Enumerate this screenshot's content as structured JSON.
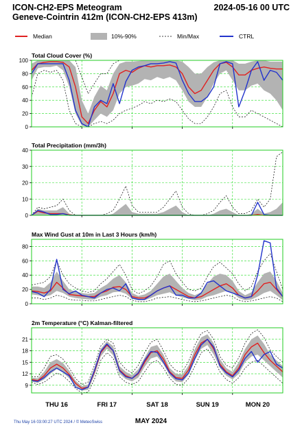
{
  "header": {
    "title_line1": "ICON-CH2-EPS Meteogram",
    "title_line2": "Geneve-Cointrin 412m (ICON-CH2-EPS 413m)",
    "run_time": "2024-05-16 00 UTC"
  },
  "legend": {
    "median": "Median",
    "band": "10%-90%",
    "minmax": "Min/Max",
    "ctrl": "CTRL"
  },
  "colors": {
    "median": "#e02020",
    "band": "#b3b3b3",
    "ctrl": "#2233cc",
    "grid": "#22dd22",
    "frame": "#22cc22"
  },
  "footer": {
    "timestamp": "Thu May 16 03:00:27 UTC 2024 / © MeteoSwiss",
    "month": "MAY  2024"
  },
  "x_axis": {
    "days": [
      {
        "label": "THU 16",
        "t": 12
      },
      {
        "label": "FRI 17",
        "t": 36
      },
      {
        "label": "SAT 18",
        "t": 60
      },
      {
        "label": "SUN 19",
        "t": 84
      },
      {
        "label": "MON 20",
        "t": 108
      }
    ],
    "grid_t": [
      24,
      48,
      72,
      96
    ],
    "t_range": [
      0,
      120
    ]
  },
  "chart_data": [
    {
      "type": "line",
      "title": "Total Cloud Cover (%)",
      "unit": "%",
      "ylim": [
        0,
        100
      ],
      "yticks": [
        0,
        20,
        40,
        60,
        80,
        100
      ],
      "t": [
        0,
        3,
        6,
        9,
        12,
        15,
        18,
        21,
        24,
        27,
        30,
        33,
        36,
        39,
        42,
        45,
        48,
        51,
        54,
        57,
        60,
        63,
        66,
        69,
        72,
        75,
        78,
        81,
        84,
        87,
        90,
        93,
        96,
        99,
        102,
        105,
        108,
        111,
        114,
        117,
        120
      ],
      "median": [
        85,
        95,
        97,
        98,
        98,
        97,
        90,
        60,
        15,
        5,
        25,
        38,
        30,
        50,
        80,
        85,
        82,
        88,
        92,
        90,
        92,
        92,
        93,
        90,
        80,
        60,
        50,
        55,
        70,
        85,
        95,
        97,
        90,
        78,
        78,
        85,
        88,
        90,
        88,
        87,
        87
      ],
      "p10": [
        70,
        88,
        90,
        90,
        92,
        85,
        60,
        20,
        2,
        0,
        10,
        20,
        15,
        25,
        50,
        60,
        62,
        65,
        72,
        70,
        75,
        72,
        75,
        70,
        55,
        38,
        30,
        30,
        45,
        65,
        80,
        85,
        70,
        55,
        55,
        62,
        65,
        55,
        50,
        40,
        25
      ],
      "p90": [
        95,
        100,
        100,
        100,
        100,
        100,
        100,
        90,
        40,
        20,
        45,
        62,
        55,
        80,
        95,
        98,
        98,
        99,
        100,
        100,
        100,
        100,
        100,
        100,
        98,
        90,
        80,
        80,
        90,
        97,
        100,
        100,
        100,
        95,
        95,
        98,
        100,
        100,
        98,
        98,
        98
      ],
      "min": [
        45,
        80,
        85,
        82,
        85,
        70,
        25,
        5,
        0,
        0,
        5,
        8,
        5,
        10,
        20,
        25,
        28,
        32,
        38,
        35,
        40,
        38,
        42,
        38,
        25,
        12,
        5,
        5,
        15,
        30,
        50,
        55,
        30,
        15,
        15,
        25,
        20,
        15,
        10,
        5,
        0
      ],
      "max": [
        100,
        100,
        100,
        100,
        100,
        100,
        100,
        100,
        75,
        50,
        65,
        80,
        80,
        95,
        100,
        100,
        100,
        100,
        100,
        100,
        100,
        100,
        100,
        100,
        100,
        100,
        100,
        100,
        100,
        100,
        100,
        100,
        100,
        100,
        100,
        100,
        100,
        100,
        100,
        100,
        100
      ],
      "ctrl": [
        80,
        95,
        95,
        95,
        95,
        95,
        70,
        25,
        5,
        0,
        30,
        40,
        35,
        65,
        35,
        68,
        85,
        90,
        92,
        95,
        95,
        96,
        98,
        96,
        70,
        50,
        38,
        38,
        45,
        60,
        95,
        98,
        95,
        30,
        55,
        85,
        98,
        70,
        85,
        82,
        70
      ]
    },
    {
      "type": "line",
      "title": "Total Precipitation (mm/3h)",
      "unit": "mm/3h",
      "ylim": [
        0,
        40
      ],
      "yticks": [
        0,
        10,
        20,
        30,
        40
      ],
      "t": [
        0,
        3,
        6,
        9,
        12,
        15,
        18,
        21,
        24,
        27,
        30,
        33,
        36,
        39,
        42,
        45,
        48,
        51,
        54,
        57,
        60,
        63,
        66,
        69,
        72,
        75,
        78,
        81,
        84,
        87,
        90,
        93,
        96,
        99,
        102,
        105,
        108,
        111,
        114,
        117,
        120
      ],
      "median": [
        0,
        2.5,
        1.5,
        1,
        1,
        1,
        0.3,
        0,
        0,
        0,
        0,
        0,
        0,
        0,
        0,
        0,
        0,
        0,
        0,
        0,
        0,
        0,
        0,
        0,
        0,
        0,
        0,
        0,
        0,
        0,
        0,
        0,
        0,
        0,
        0,
        0,
        0.5,
        0,
        0,
        0,
        0
      ],
      "p10": [
        0,
        0,
        0,
        0,
        0,
        0,
        0,
        0,
        0,
        0,
        0,
        0,
        0,
        0,
        0,
        0,
        0,
        0,
        0,
        0,
        0,
        0,
        0,
        0,
        0,
        0,
        0,
        0,
        0,
        0,
        0,
        0,
        0,
        0,
        0,
        0,
        0,
        0,
        0,
        0,
        0
      ],
      "p90": [
        0,
        4,
        3,
        3,
        3,
        5,
        1,
        0,
        0,
        0,
        0,
        0,
        0,
        1,
        4,
        7,
        2,
        1,
        1,
        1,
        1,
        2,
        4,
        6,
        2,
        0,
        0,
        0,
        0,
        1,
        3,
        4,
        2,
        0,
        0,
        1,
        4,
        1,
        2,
        4,
        8
      ],
      "min": [
        0,
        0,
        0,
        0,
        0,
        0,
        0,
        0,
        0,
        0,
        0,
        0,
        0,
        0,
        0,
        0,
        0,
        0,
        0,
        0,
        0,
        0,
        0,
        0,
        0,
        0,
        0,
        0,
        0,
        0,
        0,
        0,
        0,
        0,
        0,
        0,
        0,
        0,
        0,
        0,
        0
      ],
      "max": [
        0,
        5,
        4,
        5,
        6,
        10,
        3,
        0,
        0,
        0,
        0,
        0,
        1,
        3,
        10,
        18,
        6,
        2,
        2,
        2,
        2,
        5,
        10,
        15,
        5,
        1,
        0,
        0,
        1,
        3,
        8,
        12,
        5,
        1,
        1,
        3,
        10,
        5,
        10,
        36,
        39
      ],
      "ctrl": [
        0,
        3,
        2,
        0.5,
        0.5,
        1,
        0,
        0,
        0,
        0,
        0,
        0,
        0,
        0,
        0,
        0,
        0,
        0,
        0,
        0,
        0,
        0,
        0,
        0,
        0,
        0,
        0,
        0,
        0,
        0,
        0,
        0,
        0,
        0,
        0,
        0,
        8,
        0.5,
        0,
        0,
        0
      ]
    },
    {
      "type": "line",
      "title": "Max Wind Gust at 10m in Last 3 Hours (km/h)",
      "unit": "km/h",
      "ylim": [
        0,
        90
      ],
      "yticks": [
        0,
        20,
        40,
        60,
        80
      ],
      "t": [
        0,
        3,
        6,
        9,
        12,
        15,
        18,
        21,
        24,
        27,
        30,
        33,
        36,
        39,
        42,
        45,
        48,
        51,
        54,
        57,
        60,
        63,
        66,
        69,
        72,
        75,
        78,
        81,
        84,
        87,
        90,
        93,
        96,
        99,
        102,
        105,
        108,
        111,
        114,
        117,
        120
      ],
      "median": [
        18,
        17,
        15,
        18,
        30,
        22,
        13,
        12,
        11,
        10,
        10,
        15,
        18,
        23,
        24,
        20,
        10,
        8,
        8,
        12,
        18,
        22,
        25,
        20,
        15,
        10,
        8,
        10,
        15,
        20,
        25,
        28,
        22,
        12,
        8,
        10,
        18,
        28,
        30,
        20,
        10
      ],
      "p10": [
        13,
        12,
        10,
        12,
        18,
        15,
        10,
        8,
        7,
        6,
        6,
        10,
        12,
        16,
        17,
        14,
        7,
        5,
        5,
        8,
        12,
        14,
        16,
        12,
        9,
        7,
        5,
        6,
        10,
        12,
        15,
        18,
        15,
        8,
        5,
        6,
        10,
        15,
        18,
        12,
        5
      ],
      "p90": [
        24,
        24,
        22,
        30,
        45,
        32,
        20,
        17,
        15,
        14,
        15,
        22,
        27,
        35,
        40,
        30,
        15,
        11,
        13,
        18,
        28,
        38,
        42,
        32,
        22,
        15,
        12,
        16,
        28,
        38,
        42,
        40,
        32,
        18,
        12,
        16,
        30,
        42,
        45,
        32,
        15
      ],
      "min": [
        8,
        8,
        6,
        8,
        12,
        10,
        6,
        5,
        5,
        4,
        4,
        6,
        8,
        10,
        12,
        10,
        5,
        3,
        3,
        5,
        8,
        9,
        10,
        8,
        6,
        4,
        3,
        4,
        6,
        8,
        10,
        12,
        10,
        5,
        3,
        4,
        6,
        8,
        10,
        8,
        3
      ],
      "max": [
        26,
        28,
        30,
        38,
        60,
        40,
        28,
        22,
        18,
        16,
        18,
        28,
        35,
        45,
        55,
        40,
        20,
        14,
        18,
        25,
        38,
        55,
        60,
        42,
        30,
        20,
        18,
        22,
        38,
        52,
        58,
        50,
        42,
        28,
        18,
        24,
        45,
        60,
        70,
        45,
        20
      ],
      "ctrl": [
        17,
        15,
        10,
        20,
        62,
        20,
        14,
        18,
        12,
        10,
        8,
        15,
        20,
        22,
        18,
        28,
        8,
        6,
        6,
        12,
        18,
        22,
        25,
        12,
        12,
        8,
        8,
        15,
        30,
        32,
        25,
        18,
        15,
        12,
        8,
        10,
        40,
        88,
        85,
        22,
        10
      ]
    },
    {
      "type": "line",
      "title": "2m Temperature (°C) Kalman-filtered",
      "title_unit": "°C",
      "ylim": [
        7,
        24
      ],
      "yticks": [
        9,
        12,
        15,
        18,
        21
      ],
      "t": [
        0,
        3,
        6,
        9,
        12,
        15,
        18,
        21,
        24,
        27,
        30,
        33,
        36,
        39,
        42,
        45,
        48,
        51,
        54,
        57,
        60,
        63,
        66,
        69,
        72,
        75,
        78,
        81,
        84,
        87,
        90,
        93,
        96,
        99,
        102,
        105,
        108,
        111,
        114,
        117,
        120
      ],
      "median": [
        10.5,
        10.2,
        11.5,
        13.5,
        14.5,
        13.5,
        11.8,
        9.5,
        8.2,
        8.5,
        12.5,
        17.5,
        19.5,
        18,
        13,
        11.5,
        10.8,
        12,
        15,
        17.5,
        18,
        15.8,
        12.5,
        11,
        10.8,
        13,
        17,
        20,
        21,
        18.5,
        14.5,
        12.5,
        11.5,
        13.5,
        17,
        19,
        20,
        17.5,
        15.5,
        14,
        12.5
      ],
      "p10": [
        10,
        9.6,
        10.5,
        12,
        13.2,
        12.3,
        10.8,
        8.8,
        7.6,
        7.8,
        11.5,
        16.5,
        18.5,
        16.8,
        12,
        10.6,
        10,
        11,
        13.8,
        16,
        16.5,
        14.5,
        11.5,
        10,
        9.8,
        11.8,
        15.5,
        18.5,
        19.5,
        17,
        13.5,
        11.5,
        10.5,
        12,
        15,
        16.5,
        17,
        15.5,
        14,
        12.5,
        11
      ],
      "p90": [
        11,
        10.8,
        12.5,
        15,
        15.8,
        14.8,
        12.8,
        10.2,
        8.8,
        9.2,
        13.5,
        18.5,
        20.5,
        19.2,
        14,
        12.5,
        11.6,
        13.2,
        16.2,
        19,
        19.5,
        17,
        13.5,
        12,
        11.8,
        14.2,
        18.5,
        21.5,
        22.3,
        20,
        15.8,
        13.5,
        12.5,
        15,
        18.5,
        21,
        22,
        19.8,
        17,
        15.5,
        14
      ],
      "min": [
        9.8,
        9.2,
        9.8,
        11,
        12.2,
        11.5,
        10,
        8.2,
        7,
        7.2,
        10.5,
        15.5,
        17.5,
        16,
        11.2,
        9.8,
        9.2,
        10,
        12.5,
        14.8,
        15.5,
        13.5,
        10.8,
        9.2,
        9,
        10.8,
        14,
        17.5,
        18.5,
        16,
        12.5,
        10.5,
        9.5,
        11,
        13.5,
        15,
        15.5,
        14,
        12.5,
        11,
        9.5
      ],
      "max": [
        11.2,
        11.2,
        13.5,
        16.5,
        17,
        15.8,
        13.5,
        10.8,
        9.2,
        9.8,
        14.2,
        19.2,
        21,
        20,
        15,
        13.2,
        12.2,
        14.2,
        17.5,
        20.2,
        21,
        18,
        14.5,
        12.8,
        12.5,
        15.2,
        19.5,
        22.5,
        23.3,
        21,
        16.5,
        14.2,
        13.5,
        16.2,
        20,
        22.5,
        23.5,
        21.5,
        18.2,
        16.5,
        15
      ],
      "ctrl": [
        10.2,
        10,
        11,
        12.5,
        13.5,
        12.5,
        11.5,
        8.5,
        7.8,
        8.5,
        12.8,
        17.8,
        19.8,
        18,
        12.8,
        11.2,
        10.8,
        12.2,
        15.5,
        17.8,
        17.6,
        15,
        12.2,
        10.7,
        10.4,
        12.2,
        16,
        19.5,
        21,
        19,
        14,
        12.2,
        11.2,
        13,
        16,
        17.8,
        15,
        17,
        17.8,
        14.5,
        13.5
      ]
    }
  ]
}
